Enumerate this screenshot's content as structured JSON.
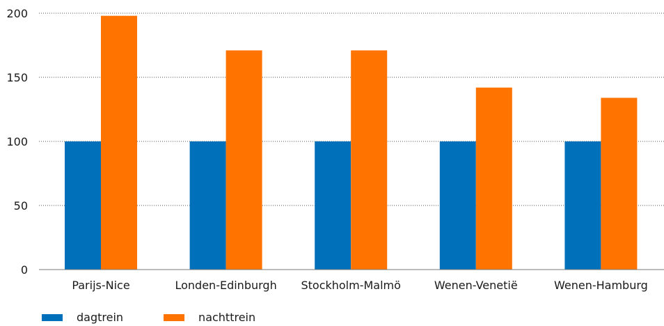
{
  "chart_data": {
    "type": "bar",
    "title": "",
    "xlabel": "",
    "ylabel": "",
    "categories": [
      "Parijs-Nice",
      "Londen-Edinburgh",
      "Stockholm-Malmö",
      "Wenen-Venetië",
      "Wenen-Hamburg"
    ],
    "series": [
      {
        "name": "dagtrein",
        "color": "#0070bb",
        "values": [
          100,
          100,
          100,
          100,
          100
        ]
      },
      {
        "name": "nachttrein",
        "color": "#ff7300",
        "values": [
          198,
          171,
          171,
          142,
          134
        ]
      }
    ],
    "ylim": [
      0,
      200
    ],
    "yticks": [
      0,
      50,
      100,
      150,
      200
    ],
    "grid": true,
    "legend_position": "bottom-left"
  }
}
